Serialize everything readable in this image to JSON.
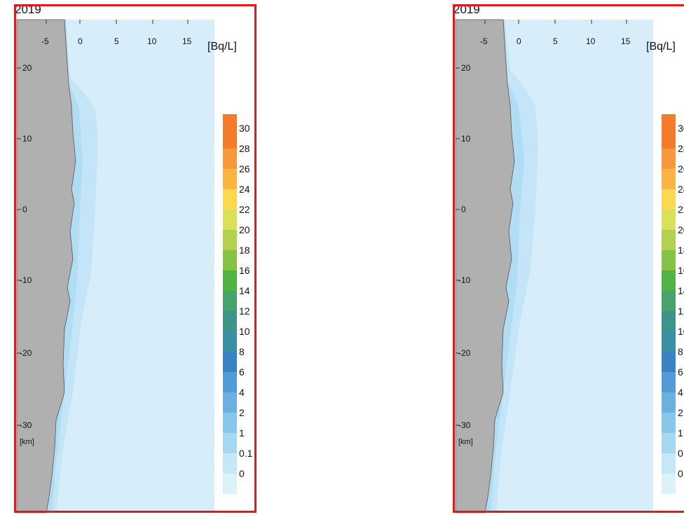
{
  "panels": [
    {
      "id": "left",
      "year": "2019",
      "unit": "[Bq/L]",
      "x_ticks": [
        "-5",
        "0",
        "5",
        "10",
        "15"
      ],
      "y_ticks": [
        "20",
        "10",
        "0",
        "-10",
        "-20",
        "-30"
      ],
      "km_label": "[km]"
    },
    {
      "id": "right",
      "year": "2019",
      "unit": "[Bq/L]",
      "x_ticks": [
        "-5",
        "0",
        "5",
        "10",
        "15"
      ],
      "y_ticks": [
        "20",
        "10",
        "0",
        "-10",
        "-20",
        "-30"
      ],
      "km_label": "[km]"
    }
  ],
  "legend": {
    "labels": [
      "30",
      "28",
      "26",
      "24",
      "22",
      "20",
      "18",
      "16",
      "14",
      "12",
      "10",
      "8",
      "6",
      "4",
      "2",
      "1",
      "0.1",
      "0"
    ],
    "colors": [
      "#f47b2b",
      "#f7983a",
      "#f9b443",
      "#fbd94e",
      "#dbe05a",
      "#b3d14d",
      "#84c245",
      "#52b345",
      "#47a36c",
      "#3f9489",
      "#3a8fa4",
      "#3b82c4",
      "#519cd6",
      "#6cb0e0",
      "#88c6ea",
      "#a7d8f3",
      "#c5e7f8",
      "#ddf1fb"
    ]
  },
  "colors": {
    "frame": "#e21a1a",
    "land": "#b0b0b0",
    "sea": "#d7eefa",
    "band_light": "#c4e5f7",
    "band_mid": "#b0dcf4"
  }
}
